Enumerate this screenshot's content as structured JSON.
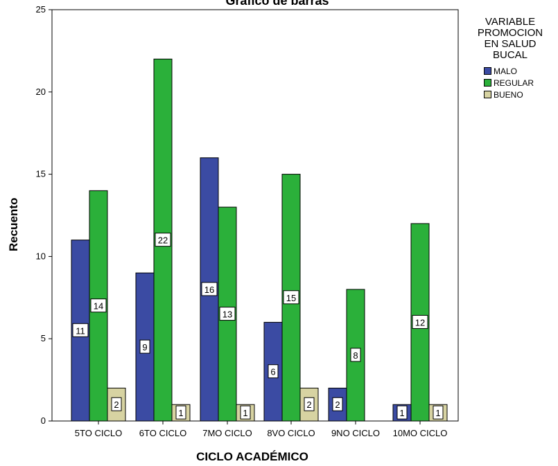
{
  "chart_data": {
    "type": "bar",
    "title": "Gráfico de barras",
    "xlabel": "CICLO ACADÉMICO",
    "ylabel": "Recuento",
    "ylim": [
      0,
      25
    ],
    "yticks": [
      "0",
      "5",
      "10",
      "15",
      "20",
      "25"
    ],
    "categories": [
      "5TO CICLO",
      "6TO CICLO",
      "7MO CICLO",
      "8VO CICLO",
      "9NO CICLO",
      "10MO CICLO"
    ],
    "legend_title": "VARIABLE PROMOCION EN SALUD BUCAL",
    "legend_placement": "top-right",
    "grid": false,
    "series": [
      {
        "name": "MALO",
        "color": "#3b4ba3",
        "values": [
          11,
          9,
          16,
          6,
          2,
          1
        ]
      },
      {
        "name": "REGULAR",
        "color": "#2bb03a",
        "values": [
          14,
          22,
          13,
          15,
          8,
          12
        ]
      },
      {
        "name": "BUENO",
        "color": "#d7d3a2",
        "values": [
          2,
          1,
          1,
          2,
          null,
          1
        ]
      }
    ]
  }
}
